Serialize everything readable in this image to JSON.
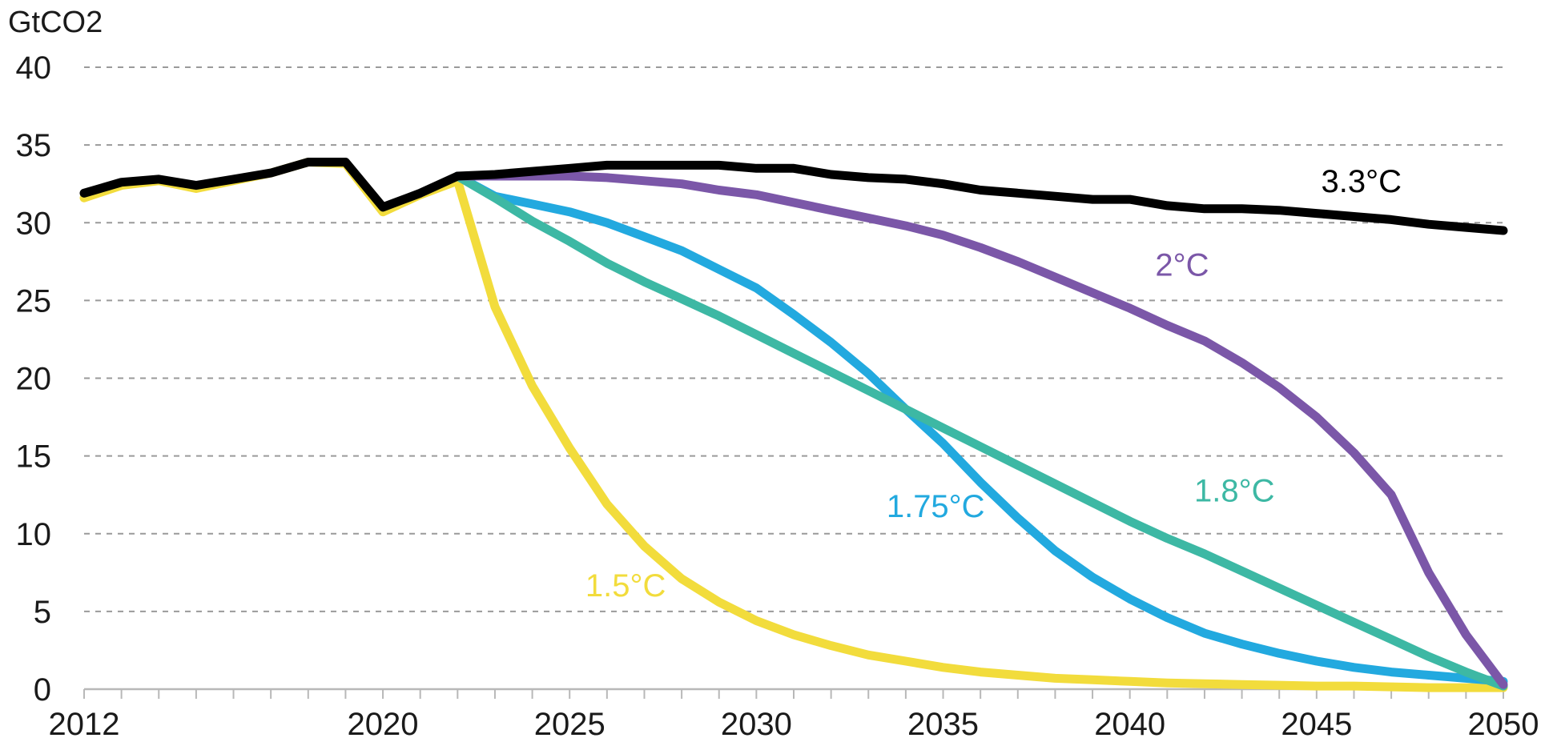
{
  "chart_data": {
    "type": "line",
    "ylabel": "GtCO2",
    "xlim": [
      2012,
      2050
    ],
    "ylim": [
      0,
      40
    ],
    "x_ticks": [
      2012,
      2020,
      2025,
      2030,
      2035,
      2040,
      2045,
      2050
    ],
    "y_ticks": [
      0,
      5,
      10,
      15,
      20,
      25,
      30,
      35,
      40
    ],
    "grid": true,
    "series": [
      {
        "name": "1.5°C",
        "color": "#f2dc3c",
        "x": [
          2012,
          2013,
          2014,
          2015,
          2016,
          2017,
          2018,
          2019,
          2020,
          2021,
          2022,
          2023,
          2024,
          2025,
          2026,
          2027,
          2028,
          2029,
          2030,
          2031,
          2032,
          2033,
          2034,
          2035,
          2036,
          2037,
          2038,
          2039,
          2040,
          2041,
          2042,
          2043,
          2044,
          2045,
          2046,
          2047,
          2048,
          2049,
          2050
        ],
        "values": [
          31.6,
          32.4,
          32.7,
          32.2,
          32.7,
          33.2,
          33.9,
          33.8,
          30.7,
          31.8,
          32.7,
          24.6,
          19.5,
          15.5,
          11.9,
          9.2,
          7.1,
          5.6,
          4.4,
          3.5,
          2.8,
          2.2,
          1.8,
          1.4,
          1.1,
          0.9,
          0.7,
          0.6,
          0.5,
          0.4,
          0.35,
          0.3,
          0.25,
          0.2,
          0.2,
          0.15,
          0.1,
          0.1,
          0.1
        ]
      },
      {
        "name": "1.75°C",
        "color": "#22a9df",
        "x": [
          2022,
          2023,
          2024,
          2025,
          2026,
          2027,
          2028,
          2029,
          2030,
          2031,
          2032,
          2033,
          2034,
          2035,
          2036,
          2037,
          2038,
          2039,
          2040,
          2041,
          2042,
          2043,
          2044,
          2045,
          2046,
          2047,
          2048,
          2049,
          2050
        ],
        "values": [
          33.0,
          31.7,
          31.2,
          30.7,
          30.0,
          29.1,
          28.2,
          27.0,
          25.8,
          24.1,
          22.3,
          20.3,
          18.0,
          15.8,
          13.3,
          11.0,
          8.9,
          7.2,
          5.8,
          4.6,
          3.6,
          2.9,
          2.3,
          1.8,
          1.4,
          1.1,
          0.9,
          0.7,
          0.5
        ]
      },
      {
        "name": "1.8°C",
        "color": "#3db8a4",
        "x": [
          2022,
          2023,
          2024,
          2025,
          2026,
          2027,
          2028,
          2029,
          2030,
          2031,
          2032,
          2033,
          2034,
          2035,
          2036,
          2037,
          2038,
          2039,
          2040,
          2041,
          2042,
          2043,
          2044,
          2045,
          2046,
          2047,
          2048,
          2049,
          2050
        ],
        "values": [
          33.0,
          31.6,
          30.1,
          28.8,
          27.4,
          26.2,
          25.1,
          24.0,
          22.8,
          21.6,
          20.4,
          19.2,
          18.0,
          16.8,
          15.6,
          14.4,
          13.2,
          12.0,
          10.8,
          9.7,
          8.7,
          7.6,
          6.5,
          5.4,
          4.3,
          3.2,
          2.1,
          1.1,
          0.2
        ]
      },
      {
        "name": "2°C",
        "color": "#7b57a8",
        "x": [
          2022,
          2023,
          2024,
          2025,
          2026,
          2027,
          2028,
          2029,
          2030,
          2031,
          2032,
          2033,
          2034,
          2035,
          2036,
          2037,
          2038,
          2039,
          2040,
          2041,
          2042,
          2043,
          2044,
          2045,
          2046,
          2047,
          2048,
          2049,
          2050
        ],
        "values": [
          33.0,
          33.0,
          33.0,
          33.0,
          32.9,
          32.7,
          32.5,
          32.1,
          31.8,
          31.3,
          30.8,
          30.3,
          29.8,
          29.2,
          28.4,
          27.5,
          26.5,
          25.5,
          24.5,
          23.4,
          22.4,
          21.0,
          19.4,
          17.5,
          15.2,
          12.5,
          7.5,
          3.5,
          0.3
        ]
      },
      {
        "name": "3.3°C",
        "color": "#000000",
        "x": [
          2012,
          2013,
          2014,
          2015,
          2016,
          2017,
          2018,
          2019,
          2020,
          2021,
          2022,
          2023,
          2024,
          2025,
          2026,
          2027,
          2028,
          2029,
          2030,
          2031,
          2032,
          2033,
          2034,
          2035,
          2036,
          2037,
          2038,
          2039,
          2040,
          2041,
          2042,
          2043,
          2044,
          2045,
          2046,
          2047,
          2048,
          2049,
          2050
        ],
        "values": [
          31.9,
          32.6,
          32.8,
          32.4,
          32.8,
          33.2,
          33.9,
          33.9,
          31.0,
          31.9,
          33.0,
          33.1,
          33.3,
          33.5,
          33.7,
          33.7,
          33.7,
          33.7,
          33.5,
          33.5,
          33.1,
          32.9,
          32.8,
          32.5,
          32.1,
          31.9,
          31.7,
          31.5,
          31.5,
          31.1,
          30.9,
          30.9,
          30.8,
          30.6,
          30.4,
          30.2,
          29.9,
          29.7,
          29.5
        ]
      }
    ],
    "annotations": [
      {
        "text": "3.3°C",
        "x": 2046.2,
        "y": 32.7,
        "color": "#000000"
      },
      {
        "text": "2°C",
        "x": 2041.4,
        "y": 27.3,
        "color": "#7b57a8"
      },
      {
        "text": "1.8°C",
        "x": 2042.8,
        "y": 12.8,
        "color": "#3db8a4"
      },
      {
        "text": "1.75°C",
        "x": 2034.8,
        "y": 11.8,
        "color": "#22a9df"
      },
      {
        "text": "1.5°C",
        "x": 2026.5,
        "y": 6.7,
        "color": "#f2dc3c"
      }
    ]
  }
}
